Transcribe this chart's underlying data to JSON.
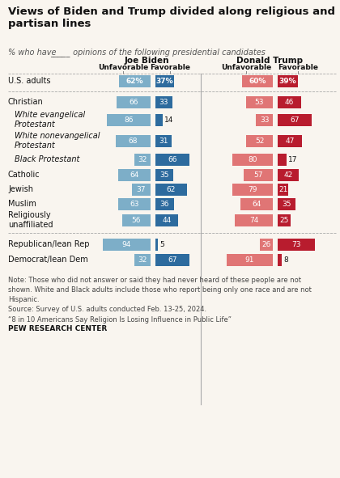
{
  "title": "Views of Biden and Trump divided along religious and\npartisan lines",
  "categories": [
    "U.S. adults",
    "Christian",
    "White evangelical\nProtestant",
    "White nonevangelical\nProtestant",
    "Black Protestant",
    "Catholic",
    "Jewish",
    "Muslim",
    "Religiously\nunaffiliated",
    "Republican/lean Rep",
    "Democrat/lean Dem"
  ],
  "indented": [
    false,
    false,
    true,
    true,
    true,
    false,
    false,
    false,
    false,
    false,
    false
  ],
  "biden_unfav": [
    62,
    66,
    86,
    68,
    32,
    64,
    37,
    63,
    56,
    94,
    32
  ],
  "biden_fav": [
    37,
    33,
    14,
    31,
    66,
    35,
    62,
    36,
    44,
    5,
    67
  ],
  "trump_unfav": [
    60,
    53,
    33,
    52,
    80,
    57,
    79,
    64,
    74,
    26,
    91
  ],
  "trump_fav": [
    39,
    46,
    67,
    47,
    17,
    42,
    21,
    35,
    25,
    73,
    8
  ],
  "color_biden_unfav": "#7daec8",
  "color_biden_fav": "#2d6b9e",
  "color_trump_unfav": "#e07575",
  "color_trump_fav": "#b81c2e",
  "bg_color": "#f9f5ef",
  "note_line1": "Note: Those who did not answer or said they had never heard of these people are not",
  "note_line2": "shown. White and Black adults include those who report being only one race and are not",
  "note_line3": "Hispanic.",
  "note_line4": "Source: Survey of U.S. adults conducted Feb. 13-25, 2024.",
  "note_line5": "“8 in 10 Americans Say Religion Is Losing Influence in Public Life”",
  "pew": "PEW RESEARCH CENTER"
}
